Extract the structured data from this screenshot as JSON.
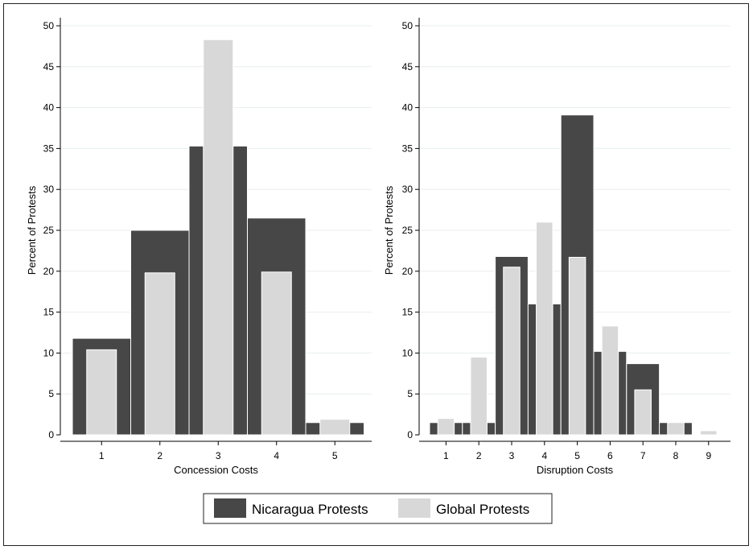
{
  "colors": {
    "nicaragua": "#474747",
    "global": "#d8d8d8",
    "grid": "#e8eef0"
  },
  "legend": [
    {
      "name": "Nicaragua Protests",
      "color_key": "nicaragua"
    },
    {
      "name": "Global Protests",
      "color_key": "global"
    }
  ],
  "chart_data": [
    {
      "type": "bar",
      "xlabel": "Concession Costs",
      "ylabel": "Percent of Protests",
      "ylim": [
        0,
        50
      ],
      "yticks": [
        0,
        5,
        10,
        15,
        20,
        25,
        30,
        35,
        40,
        45,
        50
      ],
      "categories": [
        "1",
        "2",
        "3",
        "4",
        "5"
      ],
      "series": [
        {
          "name": "Nicaragua Protests",
          "values": [
            11.8,
            25.0,
            35.3,
            26.5,
            1.5
          ]
        },
        {
          "name": "Global Protests",
          "values": [
            10.4,
            19.8,
            48.3,
            19.9,
            1.9
          ]
        }
      ],
      "grid": true
    },
    {
      "type": "bar",
      "xlabel": "Disruption Costs",
      "ylabel": "Percent of Protests",
      "ylim": [
        0,
        50
      ],
      "yticks": [
        0,
        5,
        10,
        15,
        20,
        25,
        30,
        35,
        40,
        45,
        50
      ],
      "categories": [
        "1",
        "2",
        "3",
        "4",
        "5",
        "6",
        "7",
        "8",
        "9"
      ],
      "series": [
        {
          "name": "Nicaragua Protests",
          "values": [
            1.5,
            1.5,
            21.8,
            16.0,
            39.1,
            10.2,
            8.7,
            1.5,
            0.0
          ]
        },
        {
          "name": "Global Protests",
          "values": [
            2.0,
            9.5,
            20.5,
            26.0,
            21.7,
            13.3,
            5.5,
            1.5,
            0.5
          ]
        }
      ],
      "grid": true
    }
  ]
}
